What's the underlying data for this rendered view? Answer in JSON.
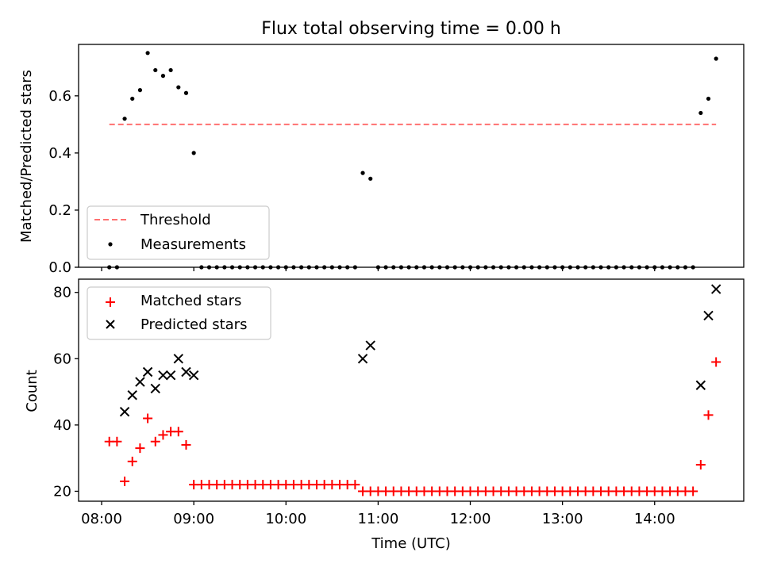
{
  "chart_data": [
    {
      "type": "scatter",
      "title": "Flux total observing time = 0.00 h",
      "xlabel": "",
      "ylabel": "Matched/Predicted stars",
      "ylim": [
        0,
        0.78
      ],
      "yticks": [
        "0.0",
        "0.2",
        "0.4",
        "0.6"
      ],
      "ytick_values": [
        0.0,
        0.2,
        0.4,
        0.6
      ],
      "legend_position": "lower-left",
      "threshold": {
        "name": "Threshold",
        "y": 0.5,
        "x_start": "08:05",
        "x_end": "14:40",
        "color": "#ff7070"
      },
      "series": [
        {
          "name": "Measurements",
          "color": "#000000",
          "points": [
            [
              "08:05",
              0.0
            ],
            [
              "08:10",
              0.0
            ],
            [
              "08:15",
              0.52
            ],
            [
              "08:20",
              0.59
            ],
            [
              "08:25",
              0.62
            ],
            [
              "08:30",
              0.75
            ],
            [
              "08:35",
              0.69
            ],
            [
              "08:40",
              0.67
            ],
            [
              "08:45",
              0.69
            ],
            [
              "08:50",
              0.63
            ],
            [
              "08:55",
              0.61
            ],
            [
              "09:00",
              0.4
            ],
            [
              "09:05",
              0.0
            ],
            [
              "09:10",
              0.0
            ],
            [
              "09:15",
              0.0
            ],
            [
              "09:20",
              0.0
            ],
            [
              "09:25",
              0.0
            ],
            [
              "09:30",
              0.0
            ],
            [
              "09:35",
              0.0
            ],
            [
              "09:40",
              0.0
            ],
            [
              "09:45",
              0.0
            ],
            [
              "09:50",
              0.0
            ],
            [
              "09:55",
              0.0
            ],
            [
              "10:00",
              0.0
            ],
            [
              "10:05",
              0.0
            ],
            [
              "10:10",
              0.0
            ],
            [
              "10:15",
              0.0
            ],
            [
              "10:20",
              0.0
            ],
            [
              "10:25",
              0.0
            ],
            [
              "10:30",
              0.0
            ],
            [
              "10:35",
              0.0
            ],
            [
              "10:40",
              0.0
            ],
            [
              "10:45",
              0.0
            ],
            [
              "10:50",
              0.33
            ],
            [
              "10:55",
              0.31
            ],
            [
              "11:00",
              0.0
            ],
            [
              "11:05",
              0.0
            ],
            [
              "11:10",
              0.0
            ],
            [
              "11:15",
              0.0
            ],
            [
              "11:20",
              0.0
            ],
            [
              "11:25",
              0.0
            ],
            [
              "11:30",
              0.0
            ],
            [
              "11:35",
              0.0
            ],
            [
              "11:40",
              0.0
            ],
            [
              "11:45",
              0.0
            ],
            [
              "11:50",
              0.0
            ],
            [
              "11:55",
              0.0
            ],
            [
              "12:00",
              0.0
            ],
            [
              "12:05",
              0.0
            ],
            [
              "12:10",
              0.0
            ],
            [
              "12:15",
              0.0
            ],
            [
              "12:20",
              0.0
            ],
            [
              "12:25",
              0.0
            ],
            [
              "12:30",
              0.0
            ],
            [
              "12:35",
              0.0
            ],
            [
              "12:40",
              0.0
            ],
            [
              "12:45",
              0.0
            ],
            [
              "12:50",
              0.0
            ],
            [
              "12:55",
              0.0
            ],
            [
              "13:00",
              0.0
            ],
            [
              "13:05",
              0.0
            ],
            [
              "13:10",
              0.0
            ],
            [
              "13:15",
              0.0
            ],
            [
              "13:20",
              0.0
            ],
            [
              "13:25",
              0.0
            ],
            [
              "13:30",
              0.0
            ],
            [
              "13:35",
              0.0
            ],
            [
              "13:40",
              0.0
            ],
            [
              "13:45",
              0.0
            ],
            [
              "13:50",
              0.0
            ],
            [
              "13:55",
              0.0
            ],
            [
              "14:00",
              0.0
            ],
            [
              "14:05",
              0.0
            ],
            [
              "14:10",
              0.0
            ],
            [
              "14:15",
              0.0
            ],
            [
              "14:20",
              0.0
            ],
            [
              "14:25",
              0.0
            ],
            [
              "14:30",
              0.54
            ],
            [
              "14:35",
              0.59
            ],
            [
              "14:40",
              0.73
            ]
          ]
        }
      ]
    },
    {
      "type": "scatter",
      "title": "",
      "xlabel": "Time (UTC)",
      "ylabel": "Count",
      "ylim": [
        17,
        84
      ],
      "yticks": [
        "20",
        "40",
        "60",
        "80"
      ],
      "ytick_values": [
        20,
        40,
        60,
        80
      ],
      "xlim": [
        "07:45",
        "14:58"
      ],
      "xticks": [
        "08:00",
        "09:00",
        "10:00",
        "11:00",
        "12:00",
        "13:00",
        "14:00"
      ],
      "legend_position": "upper-left",
      "series": [
        {
          "name": "Matched stars",
          "marker": "plus",
          "color": "#ff0000",
          "points": [
            [
              "08:05",
              35
            ],
            [
              "08:10",
              35
            ],
            [
              "08:15",
              23
            ],
            [
              "08:20",
              29
            ],
            [
              "08:25",
              33
            ],
            [
              "08:30",
              42
            ],
            [
              "08:35",
              35
            ],
            [
              "08:40",
              37
            ],
            [
              "08:45",
              38
            ],
            [
              "08:50",
              38
            ],
            [
              "08:55",
              34
            ],
            [
              "09:00",
              22
            ],
            [
              "09:05",
              22
            ],
            [
              "09:10",
              22
            ],
            [
              "09:15",
              22
            ],
            [
              "09:20",
              22
            ],
            [
              "09:25",
              22
            ],
            [
              "09:30",
              22
            ],
            [
              "09:35",
              22
            ],
            [
              "09:40",
              22
            ],
            [
              "09:45",
              22
            ],
            [
              "09:50",
              22
            ],
            [
              "09:55",
              22
            ],
            [
              "10:00",
              22
            ],
            [
              "10:05",
              22
            ],
            [
              "10:10",
              22
            ],
            [
              "10:15",
              22
            ],
            [
              "10:20",
              22
            ],
            [
              "10:25",
              22
            ],
            [
              "10:30",
              22
            ],
            [
              "10:35",
              22
            ],
            [
              "10:40",
              22
            ],
            [
              "10:45",
              22
            ],
            [
              "10:50",
              20
            ],
            [
              "10:55",
              20
            ],
            [
              "11:00",
              20
            ],
            [
              "11:05",
              20
            ],
            [
              "11:10",
              20
            ],
            [
              "11:15",
              20
            ],
            [
              "11:20",
              20
            ],
            [
              "11:25",
              20
            ],
            [
              "11:30",
              20
            ],
            [
              "11:35",
              20
            ],
            [
              "11:40",
              20
            ],
            [
              "11:45",
              20
            ],
            [
              "11:50",
              20
            ],
            [
              "11:55",
              20
            ],
            [
              "12:00",
              20
            ],
            [
              "12:05",
              20
            ],
            [
              "12:10",
              20
            ],
            [
              "12:15",
              20
            ],
            [
              "12:20",
              20
            ],
            [
              "12:25",
              20
            ],
            [
              "12:30",
              20
            ],
            [
              "12:35",
              20
            ],
            [
              "12:40",
              20
            ],
            [
              "12:45",
              20
            ],
            [
              "12:50",
              20
            ],
            [
              "12:55",
              20
            ],
            [
              "13:00",
              20
            ],
            [
              "13:05",
              20
            ],
            [
              "13:10",
              20
            ],
            [
              "13:15",
              20
            ],
            [
              "13:20",
              20
            ],
            [
              "13:25",
              20
            ],
            [
              "13:30",
              20
            ],
            [
              "13:35",
              20
            ],
            [
              "13:40",
              20
            ],
            [
              "13:45",
              20
            ],
            [
              "13:50",
              20
            ],
            [
              "13:55",
              20
            ],
            [
              "14:00",
              20
            ],
            [
              "14:05",
              20
            ],
            [
              "14:10",
              20
            ],
            [
              "14:15",
              20
            ],
            [
              "14:20",
              20
            ],
            [
              "14:25",
              20
            ],
            [
              "14:30",
              28
            ],
            [
              "14:35",
              43
            ],
            [
              "14:40",
              59
            ]
          ]
        },
        {
          "name": "Predicted stars",
          "marker": "x",
          "color": "#000000",
          "points": [
            [
              "08:15",
              44
            ],
            [
              "08:20",
              49
            ],
            [
              "08:25",
              53
            ],
            [
              "08:30",
              56
            ],
            [
              "08:35",
              51
            ],
            [
              "08:40",
              55
            ],
            [
              "08:45",
              55
            ],
            [
              "08:50",
              60
            ],
            [
              "08:55",
              56
            ],
            [
              "09:00",
              55
            ],
            [
              "10:50",
              60
            ],
            [
              "10:55",
              64
            ],
            [
              "14:30",
              52
            ],
            [
              "14:35",
              73
            ],
            [
              "14:40",
              81
            ]
          ]
        }
      ]
    }
  ]
}
